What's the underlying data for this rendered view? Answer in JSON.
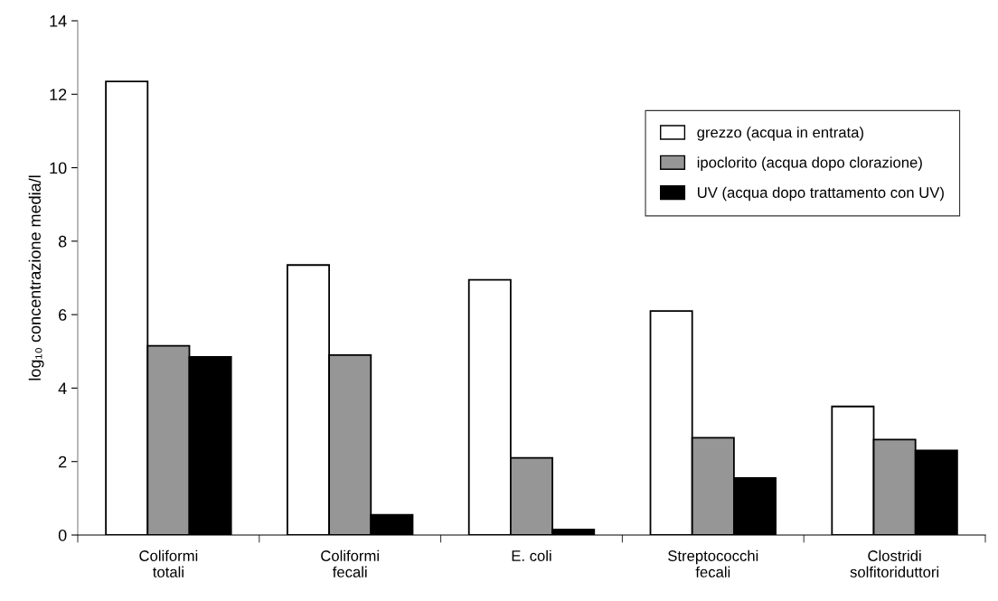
{
  "chart_data": {
    "type": "bar",
    "ylabel": "log₁₀ concentrazione media/l",
    "categories": [
      "Coliformi\ntotali",
      "Coliformi\nfecali",
      "E. coli",
      "Streptococchi\nfecali",
      "Clostridi\nsolfitoriduttori"
    ],
    "series": [
      {
        "name": "grezzo (acqua in entrata)",
        "color": "#ffffff",
        "values": [
          12.35,
          7.35,
          6.95,
          6.1,
          3.5
        ]
      },
      {
        "name": "ipoclorito (acqua dopo clorazione)",
        "color": "#969696",
        "values": [
          5.15,
          4.9,
          2.1,
          2.65,
          2.6
        ]
      },
      {
        "name": "UV (acqua dopo trattamento con UV)",
        "color": "#000000",
        "values": [
          4.85,
          0.55,
          0.15,
          1.55,
          2.3
        ]
      }
    ],
    "ylim": [
      0,
      14
    ],
    "yticks": [
      0,
      2,
      4,
      6,
      8,
      10,
      12,
      14
    ],
    "grid": false,
    "legend": "top right"
  }
}
